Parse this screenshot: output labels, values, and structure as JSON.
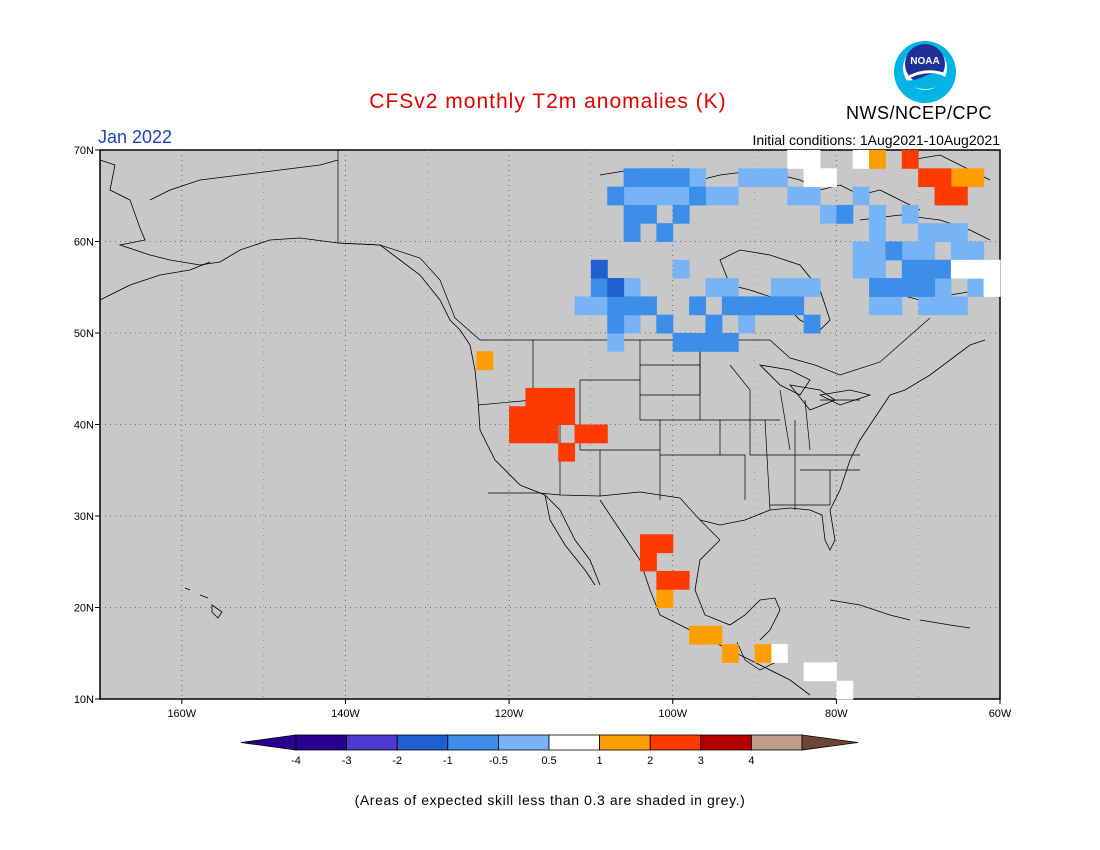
{
  "header": {
    "title": "CFSv2 monthly T2m anomalies (K)",
    "month": "Jan 2022",
    "agency": "NWS/NCEP/CPC",
    "logo_text": "NOAA",
    "initial_conditions": "Initial conditions: 1Aug2021-10Aug2021"
  },
  "map": {
    "lon_range": [
      -170,
      -60
    ],
    "lat_range": [
      10,
      70
    ],
    "lat_labels": [
      "10N",
      "20N",
      "30N",
      "40N",
      "50N",
      "60N",
      "70N"
    ],
    "lon_labels": [
      "160W",
      "140W",
      "120W",
      "100W",
      "80W",
      "60W"
    ],
    "background": "#c8c8c8"
  },
  "legend": {
    "bins": [
      {
        "label": "-4",
        "color": "#2a0090"
      },
      {
        "label": "-3",
        "color": "#4e3ad0"
      },
      {
        "label": "-2",
        "color": "#1f5fd0"
      },
      {
        "label": "-1",
        "color": "#3c8ee8"
      },
      {
        "label": "-0.5",
        "color": "#78b4f5"
      },
      {
        "label": "0.5",
        "color": "#ffffff"
      },
      {
        "label": "1",
        "color": "#ff9e00"
      },
      {
        "label": "2",
        "color": "#ff3a00"
      },
      {
        "label": "3",
        "color": "#b40000"
      },
      {
        "label": "4",
        "color": "#c09d8c"
      }
    ],
    "max_color": "#6e4535"
  },
  "footnote": "(Areas of expected skill less than 0.3 are shaded in grey.)"
}
